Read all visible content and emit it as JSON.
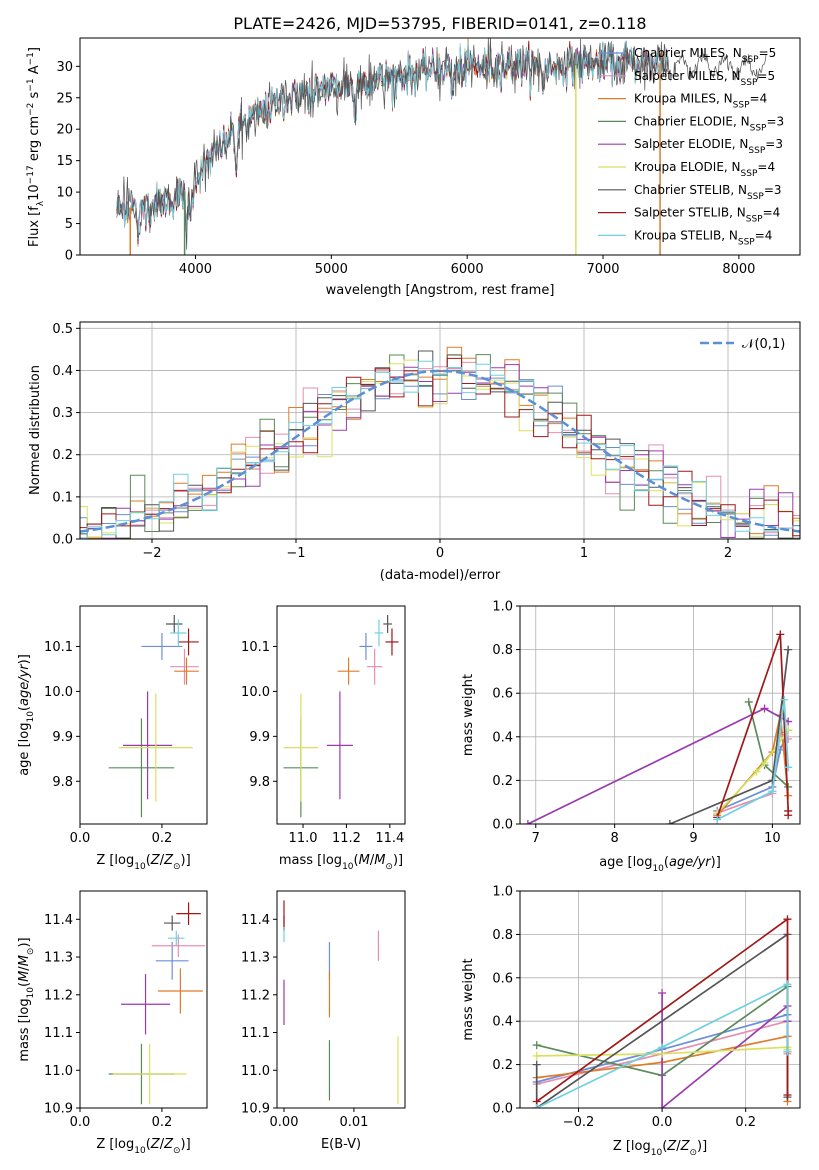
{
  "figure": {
    "title": "PLATE=2426, MJD=53795, FIBERID=0141, z=0.118"
  },
  "legend_spectrum": [
    {
      "label": "Chabrier MILES, N",
      "sub": "SSP",
      "tail": "=5",
      "color": "#6b8fd6"
    },
    {
      "label": "Salpeter MILES, N",
      "sub": "SSP",
      "tail": "=5",
      "color": "#e58fb0"
    },
    {
      "label": "Kroupa MILES, N",
      "sub": "SSP",
      "tail": "=4",
      "color": "#e07b2a"
    },
    {
      "label": "Chabrier ELODIE, N",
      "sub": "SSP",
      "tail": "=3",
      "color": "#5a8a5a"
    },
    {
      "label": "Salpeter ELODIE, N",
      "sub": "SSP",
      "tail": "=3",
      "color": "#9a3ab0"
    },
    {
      "label": "Kroupa ELODIE, N",
      "sub": "SSP",
      "tail": "=4",
      "color": "#d8e060"
    },
    {
      "label": "Chabrier STELIB, N",
      "sub": "SSP",
      "tail": "=3",
      "color": "#555555"
    },
    {
      "label": "Salpeter STELIB, N",
      "sub": "SSP",
      "tail": "=4",
      "color": "#a01818"
    },
    {
      "label": "Kroupa STELIB, N",
      "sub": "SSP",
      "tail": "=4",
      "color": "#70d0e0"
    }
  ],
  "chart_data": [
    {
      "type": "line",
      "id": "spectrum",
      "xlabel": "wavelength [Angstrom, rest frame]",
      "ylabel": "Flux [f",
      "xlim": [
        3150,
        8450
      ],
      "ylim": [
        0,
        34.5
      ],
      "xticks": [
        4000,
        5000,
        6000,
        7000,
        8000
      ],
      "yticks": [
        0,
        5,
        10,
        15,
        20,
        25,
        30
      ],
      "grid": false,
      "legend_position": "upper right",
      "continuum": {
        "x": [
          3420,
          3600,
          3800,
          3950,
          4100,
          4300,
          4600,
          4900,
          5200,
          5500,
          5800,
          6100,
          6400,
          6700,
          7000,
          7400,
          7800,
          8200
        ],
        "y": [
          7.5,
          7.5,
          8.5,
          10.5,
          15,
          20,
          24,
          26.5,
          27.5,
          28.5,
          29.5,
          30,
          30,
          30,
          30.5,
          30.5,
          30.5,
          30.5
        ]
      },
      "absorption_features": [
        {
          "x": 3580,
          "depth": 4.5
        },
        {
          "x": 3933,
          "depth": 6
        },
        {
          "x": 3968,
          "depth": 5
        },
        {
          "x": 4300,
          "depth": 6
        },
        {
          "x": 4861,
          "depth": 3
        },
        {
          "x": 5175,
          "depth": 6
        },
        {
          "x": 5890,
          "depth": 4
        },
        {
          "x": 6563,
          "depth": 3
        }
      ],
      "noisy_series": "Chabrier STELIB"
    },
    {
      "type": "bar",
      "id": "residual_hist",
      "xlabel": "(data-model)/error",
      "ylabel": "Normed distribution",
      "xlim": [
        -2.5,
        2.5
      ],
      "ylim": [
        0,
        0.515
      ],
      "xticks": [
        -2,
        -1,
        0,
        1,
        2
      ],
      "yticks": [
        0.0,
        0.1,
        0.2,
        0.3,
        0.4,
        0.5
      ],
      "grid": true,
      "bin_width": 0.1,
      "reference_curve": {
        "name": "𝒩(0,1)",
        "color": "#5b8fd6",
        "style": "dashed"
      },
      "legend_position": "upper right"
    },
    {
      "type": "scatter",
      "id": "age_vs_Z",
      "xlabel": "Z [log",
      "ylabel": "age  [log",
      "xlim": [
        0.0,
        0.31
      ],
      "ylim": [
        9.705,
        10.19
      ],
      "xticks": [
        0.0,
        0.2
      ],
      "yticks": [
        9.8,
        9.9,
        10.0,
        10.1
      ],
      "points": [
        {
          "series": "Chabrier MILES",
          "x": 0.2,
          "y": 10.1,
          "xerr": 0.05,
          "yerr": 0.03
        },
        {
          "series": "Salpeter MILES",
          "x": 0.255,
          "y": 10.055,
          "xerr": 0.035,
          "yerr": 0.04
        },
        {
          "series": "Kroupa MILES",
          "x": 0.26,
          "y": 10.045,
          "xerr": 0.03,
          "yerr": 0.03
        },
        {
          "series": "Chabrier ELODIE",
          "x": 0.15,
          "y": 9.83,
          "xerr": 0.08,
          "yerr": 0.11
        },
        {
          "series": "Salpeter ELODIE",
          "x": 0.165,
          "y": 9.88,
          "xerr": 0.06,
          "yerr": 0.12
        },
        {
          "series": "Kroupa ELODIE",
          "x": 0.185,
          "y": 9.875,
          "xerr": 0.09,
          "yerr": 0.12
        },
        {
          "series": "Chabrier STELIB",
          "x": 0.23,
          "y": 10.15,
          "xerr": 0.02,
          "yerr": 0.02
        },
        {
          "series": "Salpeter STELIB",
          "x": 0.265,
          "y": 10.11,
          "xerr": 0.025,
          "yerr": 0.03
        },
        {
          "series": "Kroupa STELIB",
          "x": 0.24,
          "y": 10.13,
          "xerr": 0.02,
          "yerr": 0.03
        }
      ]
    },
    {
      "type": "scatter",
      "id": "age_vs_mass",
      "xlabel": "mass [log",
      "ylabel": "",
      "xlim": [
        10.88,
        11.47
      ],
      "ylim": [
        9.705,
        10.19
      ],
      "xticks": [
        11.0,
        11.2,
        11.4
      ],
      "yticks": [
        9.8,
        9.9,
        10.0,
        10.1
      ],
      "points": [
        {
          "series": "Chabrier MILES",
          "x": 11.29,
          "y": 10.1,
          "xerr": 0.03,
          "yerr": 0.03
        },
        {
          "series": "Salpeter MILES",
          "x": 11.33,
          "y": 10.055,
          "xerr": 0.035,
          "yerr": 0.04
        },
        {
          "series": "Kroupa MILES",
          "x": 11.21,
          "y": 10.045,
          "xerr": 0.05,
          "yerr": 0.03
        },
        {
          "series": "Chabrier ELODIE",
          "x": 10.99,
          "y": 9.83,
          "xerr": 0.08,
          "yerr": 0.11
        },
        {
          "series": "Salpeter ELODIE",
          "x": 11.17,
          "y": 9.88,
          "xerr": 0.06,
          "yerr": 0.12
        },
        {
          "series": "Kroupa ELODIE",
          "x": 10.99,
          "y": 9.875,
          "xerr": 0.08,
          "yerr": 0.12
        },
        {
          "series": "Chabrier STELIB",
          "x": 11.39,
          "y": 10.15,
          "xerr": 0.02,
          "yerr": 0.02
        },
        {
          "series": "Salpeter STELIB",
          "x": 11.41,
          "y": 10.11,
          "xerr": 0.03,
          "yerr": 0.03
        },
        {
          "series": "Kroupa STELIB",
          "x": 11.35,
          "y": 10.13,
          "xerr": 0.02,
          "yerr": 0.03
        }
      ]
    },
    {
      "type": "line",
      "id": "massweight_vs_age",
      "xlabel": "age  [log",
      "ylabel": "mass weight",
      "xlim": [
        6.8,
        10.35
      ],
      "ylim": [
        0,
        1
      ],
      "xticks": [
        7,
        8,
        9,
        10
      ],
      "yticks": [
        0.0,
        0.2,
        0.4,
        0.6,
        0.8,
        1.0
      ],
      "grid": true,
      "series": [
        {
          "name": "Chabrier MILES",
          "x": [
            9.3,
            10.0,
            10.1,
            10.2
          ],
          "y": [
            0.06,
            0.17,
            0.34,
            0.43
          ]
        },
        {
          "name": "Salpeter MILES",
          "x": [
            9.3,
            10.0,
            10.1,
            10.2
          ],
          "y": [
            0.05,
            0.14,
            0.42,
            0.39
          ]
        },
        {
          "name": "Kroupa MILES",
          "x": [
            9.3,
            10.0,
            10.1,
            10.2
          ],
          "y": [
            0.04,
            0.33,
            0.5,
            0.13
          ]
        },
        {
          "name": "Chabrier ELODIE",
          "x": [
            9.7,
            9.9,
            10.2
          ],
          "y": [
            0.56,
            0.27,
            0.17
          ]
        },
        {
          "name": "Salpeter ELODIE",
          "x": [
            6.9,
            9.9,
            10.2
          ],
          "y": [
            0.0,
            0.53,
            0.47
          ]
        },
        {
          "name": "Kroupa ELODIE",
          "x": [
            9.3,
            9.8,
            9.9,
            10.2
          ],
          "y": [
            0.05,
            0.24,
            0.28,
            0.43
          ]
        },
        {
          "name": "Chabrier STELIB",
          "x": [
            8.7,
            10.0,
            10.2
          ],
          "y": [
            0.0,
            0.2,
            0.8
          ]
        },
        {
          "name": "Salpeter STELIB",
          "x": [
            9.3,
            10.1,
            10.2,
            10.2
          ],
          "y": [
            0.03,
            0.87,
            0.06,
            0.04
          ]
        },
        {
          "name": "Kroupa STELIB",
          "x": [
            9.3,
            10.0,
            10.15,
            10.2
          ],
          "y": [
            0.02,
            0.15,
            0.57,
            0.26
          ]
        }
      ]
    },
    {
      "type": "scatter",
      "id": "mass_vs_Z",
      "xlabel": "Z [log",
      "ylabel": "mass [log",
      "xlim": [
        0.0,
        0.31
      ],
      "ylim": [
        10.9,
        11.475
      ],
      "xticks": [
        0.0,
        0.2
      ],
      "yticks": [
        10.9,
        11.0,
        11.1,
        11.2,
        11.3,
        11.4
      ],
      "points": [
        {
          "series": "Chabrier MILES",
          "x": 0.225,
          "y": 11.29,
          "xerr": 0.04,
          "yerr": 0.05
        },
        {
          "series": "Salpeter MILES",
          "x": 0.24,
          "y": 11.33,
          "xerr": 0.065,
          "yerr": 0.03
        },
        {
          "series": "Kroupa MILES",
          "x": 0.245,
          "y": 11.21,
          "xerr": 0.055,
          "yerr": 0.06
        },
        {
          "series": "Chabrier ELODIE",
          "x": 0.15,
          "y": 10.99,
          "xerr": 0.08,
          "yerr": 0.08
        },
        {
          "series": "Salpeter ELODIE",
          "x": 0.16,
          "y": 11.175,
          "xerr": 0.06,
          "yerr": 0.08
        },
        {
          "series": "Kroupa ELODIE",
          "x": 0.17,
          "y": 10.99,
          "xerr": 0.09,
          "yerr": 0.08
        },
        {
          "series": "Chabrier STELIB",
          "x": 0.225,
          "y": 11.39,
          "xerr": 0.02,
          "yerr": 0.02
        },
        {
          "series": "Salpeter STELIB",
          "x": 0.265,
          "y": 11.415,
          "xerr": 0.03,
          "yerr": 0.03
        },
        {
          "series": "Kroupa STELIB",
          "x": 0.235,
          "y": 11.35,
          "xerr": 0.02,
          "yerr": 0.02
        }
      ]
    },
    {
      "type": "scatter",
      "id": "mass_vs_EBV",
      "xlabel": "E(B-V)",
      "ylabel": "",
      "xlim": [
        -0.001,
        0.0173
      ],
      "ylim": [
        10.9,
        11.475
      ],
      "xticks": [
        0.0,
        0.01
      ],
      "yticks": [
        10.9,
        11.0,
        11.1,
        11.2,
        11.3,
        11.4
      ],
      "points": [
        {
          "series": "Chabrier MILES",
          "x": 0.0065,
          "y": 11.29,
          "yerr": 0.05
        },
        {
          "series": "Salpeter MILES",
          "x": 0.0135,
          "y": 11.33,
          "yerr": 0.04
        },
        {
          "series": "Kroupa MILES",
          "x": 0.0065,
          "y": 11.2,
          "yerr": 0.06
        },
        {
          "series": "Chabrier ELODIE",
          "x": 0.0065,
          "y": 11.0,
          "yerr": 0.08
        },
        {
          "series": "Salpeter ELODIE",
          "x": 0.0,
          "y": 11.18,
          "yerr": 0.06
        },
        {
          "series": "Kroupa ELODIE",
          "x": 0.0163,
          "y": 11.0,
          "yerr": 0.09
        },
        {
          "series": "Chabrier STELIB",
          "x": 0.0,
          "y": 11.39,
          "yerr": 0.02
        },
        {
          "series": "Salpeter STELIB",
          "x": 0.0,
          "y": 11.41,
          "yerr": 0.04
        },
        {
          "series": "Kroupa STELIB",
          "x": 0.0,
          "y": 11.36,
          "yerr": 0.02
        }
      ]
    },
    {
      "type": "line",
      "id": "massweight_vs_Z",
      "xlabel": "Z [log",
      "ylabel": "mass weight",
      "xlim": [
        -0.34,
        0.33
      ],
      "ylim": [
        0,
        1
      ],
      "xticks": [
        -0.2,
        0.0,
        0.2
      ],
      "yticks": [
        0.0,
        0.2,
        0.4,
        0.6,
        0.8,
        1.0
      ],
      "grid": true,
      "series": [
        {
          "name": "Chabrier MILES",
          "x": [
            -0.3,
            0.0,
            0.3,
            0.3
          ],
          "y": [
            0.12,
            0.27,
            0.43,
            0.33
          ]
        },
        {
          "name": "Salpeter MILES",
          "x": [
            -0.3,
            0.0,
            0.3,
            0.3
          ],
          "y": [
            0.11,
            0.25,
            0.4,
            0.25
          ]
        },
        {
          "name": "Kroupa MILES",
          "x": [
            -0.3,
            0.0,
            0.3,
            0.3
          ],
          "y": [
            0.14,
            0.21,
            0.33,
            0.03
          ]
        },
        {
          "name": "Chabrier ELODIE",
          "x": [
            -0.3,
            0.0,
            0.3,
            0.3
          ],
          "y": [
            0.29,
            0.15,
            0.56,
            0.26
          ]
        },
        {
          "name": "Salpeter ELODIE",
          "x": [
            0.0,
            0.0,
            0.3,
            0.3
          ],
          "y": [
            0.53,
            0.0,
            0.47,
            0.4
          ]
        },
        {
          "name": "Kroupa ELODIE",
          "x": [
            -0.3,
            0.0,
            0.3,
            0.3
          ],
          "y": [
            0.24,
            0.25,
            0.28,
            0.27
          ]
        },
        {
          "name": "Chabrier STELIB",
          "x": [
            -0.3,
            -0.3,
            0.3,
            0.3
          ],
          "y": [
            0.2,
            0.0,
            0.8,
            0.05
          ]
        },
        {
          "name": "Salpeter STELIB",
          "x": [
            -0.3,
            0.3,
            0.3
          ],
          "y": [
            0.03,
            0.87,
            0.06
          ]
        },
        {
          "name": "Kroupa STELIB",
          "x": [
            -0.3,
            0.0,
            0.3,
            0.3
          ],
          "y": [
            0.0,
            0.28,
            0.57,
            0.26
          ]
        }
      ]
    }
  ]
}
